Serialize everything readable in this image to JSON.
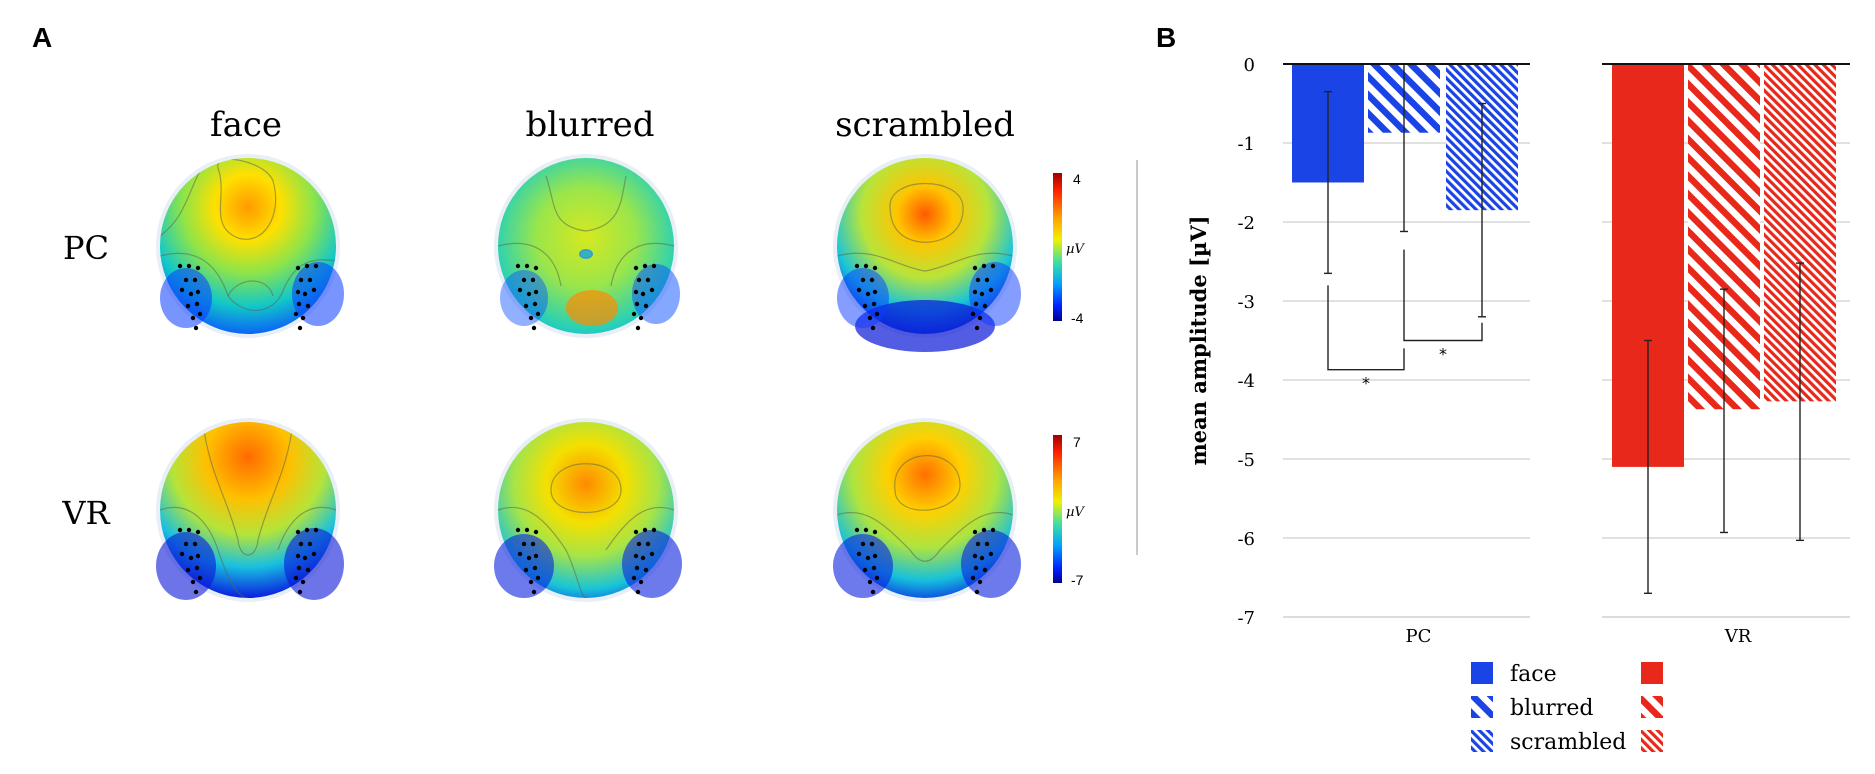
{
  "panel_a": {
    "label": "A",
    "columns": [
      "face",
      "blurred",
      "scrambled"
    ],
    "rows": [
      "PC",
      "VR"
    ],
    "colorbars": [
      {
        "max": "4",
        "unit": "µV",
        "min": "-4"
      },
      {
        "max": "7",
        "unit": "µV",
        "min": "-7"
      }
    ]
  },
  "panel_b": {
    "label": "B"
  },
  "chart_data": {
    "type": "bar",
    "title": "",
    "xlabel": "",
    "ylabel": "mean amplitude [µV]",
    "ylim": [
      -7,
      0
    ],
    "yticks": [
      0,
      -1,
      -2,
      -3,
      -4,
      -5,
      -6,
      -7
    ],
    "categories": [
      "PC",
      "VR"
    ],
    "series": [
      {
        "name": "face",
        "fill": "solid",
        "values": [
          -1.5,
          -5.1
        ],
        "error_low": [
          -2.65,
          -6.7
        ],
        "error_high": [
          -0.35,
          -3.5
        ]
      },
      {
        "name": "blurred",
        "fill": "hatched",
        "values": [
          -0.87,
          -4.37
        ],
        "error_low": [
          -2.12,
          -5.93
        ],
        "error_high": [
          0.0,
          -2.85
        ]
      },
      {
        "name": "scrambled",
        "fill": "dense-hatched",
        "values": [
          -1.85,
          -4.27
        ],
        "error_low": [
          -3.2,
          -6.03
        ],
        "error_high": [
          -0.5,
          -2.52
        ]
      }
    ],
    "colors": {
      "PC": "#1a44e6",
      "VR": "#e8281a"
    },
    "significance": [
      {
        "category": "PC",
        "between": [
          "face",
          "blurred"
        ],
        "label": "*"
      },
      {
        "category": "PC",
        "between": [
          "blurred",
          "scrambled"
        ],
        "label": "*"
      }
    ],
    "legend": [
      "face",
      "blurred",
      "scrambled"
    ]
  }
}
